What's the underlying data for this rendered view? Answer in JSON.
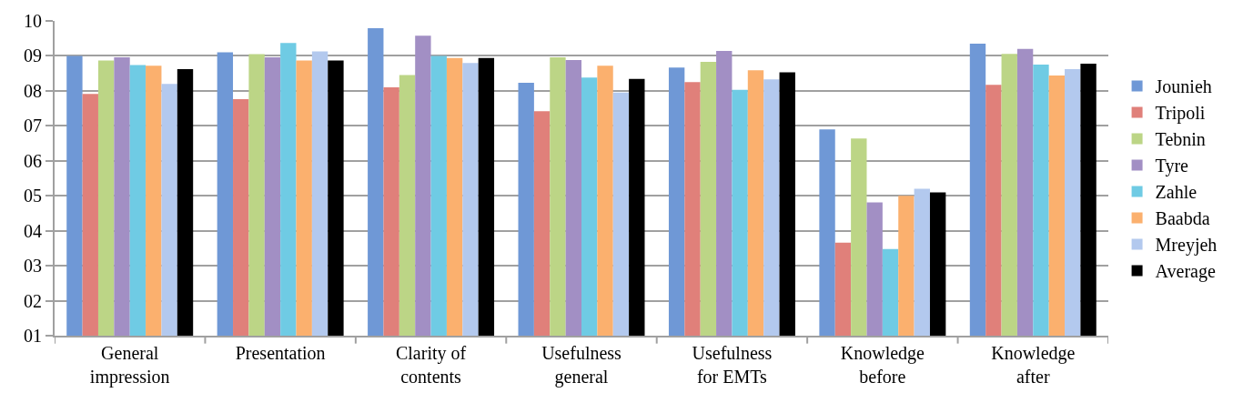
{
  "chart_data": {
    "type": "bar",
    "categories": [
      "General impression",
      "Presentation",
      "Clarity of contents",
      "Usefulness general",
      "Usefulness for EMTs",
      "Knowledge before",
      "Knowledge after"
    ],
    "series": [
      {
        "name": "Jounieh",
        "color": "#6f98d6",
        "values": [
          9.0,
          9.1,
          9.79,
          8.23,
          8.67,
          6.9,
          9.35
        ]
      },
      {
        "name": "Tripoli",
        "color": "#e0807a",
        "values": [
          7.91,
          7.76,
          8.1,
          7.42,
          8.25,
          3.66,
          8.17
        ]
      },
      {
        "name": "Tebnin",
        "color": "#bcd586",
        "values": [
          8.87,
          9.05,
          8.45,
          8.96,
          8.83,
          6.64,
          9.06
        ]
      },
      {
        "name": "Tyre",
        "color": "#a28fc4",
        "values": [
          8.96,
          8.96,
          9.58,
          8.88,
          9.14,
          4.81,
          9.2
        ]
      },
      {
        "name": "Zahle",
        "color": "#6fcbe4",
        "values": [
          8.74,
          9.37,
          9.0,
          8.38,
          8.03,
          3.48,
          8.75
        ]
      },
      {
        "name": "Baabda",
        "color": "#fbb06e",
        "values": [
          8.72,
          8.87,
          8.94,
          8.72,
          8.59,
          5.0,
          8.44
        ]
      },
      {
        "name": "Mreyjeh",
        "color": "#b3c9ee",
        "values": [
          8.2,
          9.13,
          8.8,
          7.95,
          8.33,
          5.2,
          8.62
        ]
      },
      {
        "name": "Average",
        "color": "#000000",
        "values": [
          8.62,
          8.87,
          8.94,
          8.34,
          8.53,
          5.1,
          8.78
        ]
      }
    ],
    "ylim": [
      1,
      10
    ],
    "yticks": [
      {
        "value": 1,
        "label": "01"
      },
      {
        "value": 2,
        "label": "02"
      },
      {
        "value": 3,
        "label": "03"
      },
      {
        "value": 4,
        "label": "04"
      },
      {
        "value": 5,
        "label": "05"
      },
      {
        "value": 6,
        "label": "06"
      },
      {
        "value": 7,
        "label": "07"
      },
      {
        "value": 8,
        "label": "08"
      },
      {
        "value": 9,
        "label": "09"
      },
      10
    ],
    "grid": "y",
    "legend": "right"
  }
}
